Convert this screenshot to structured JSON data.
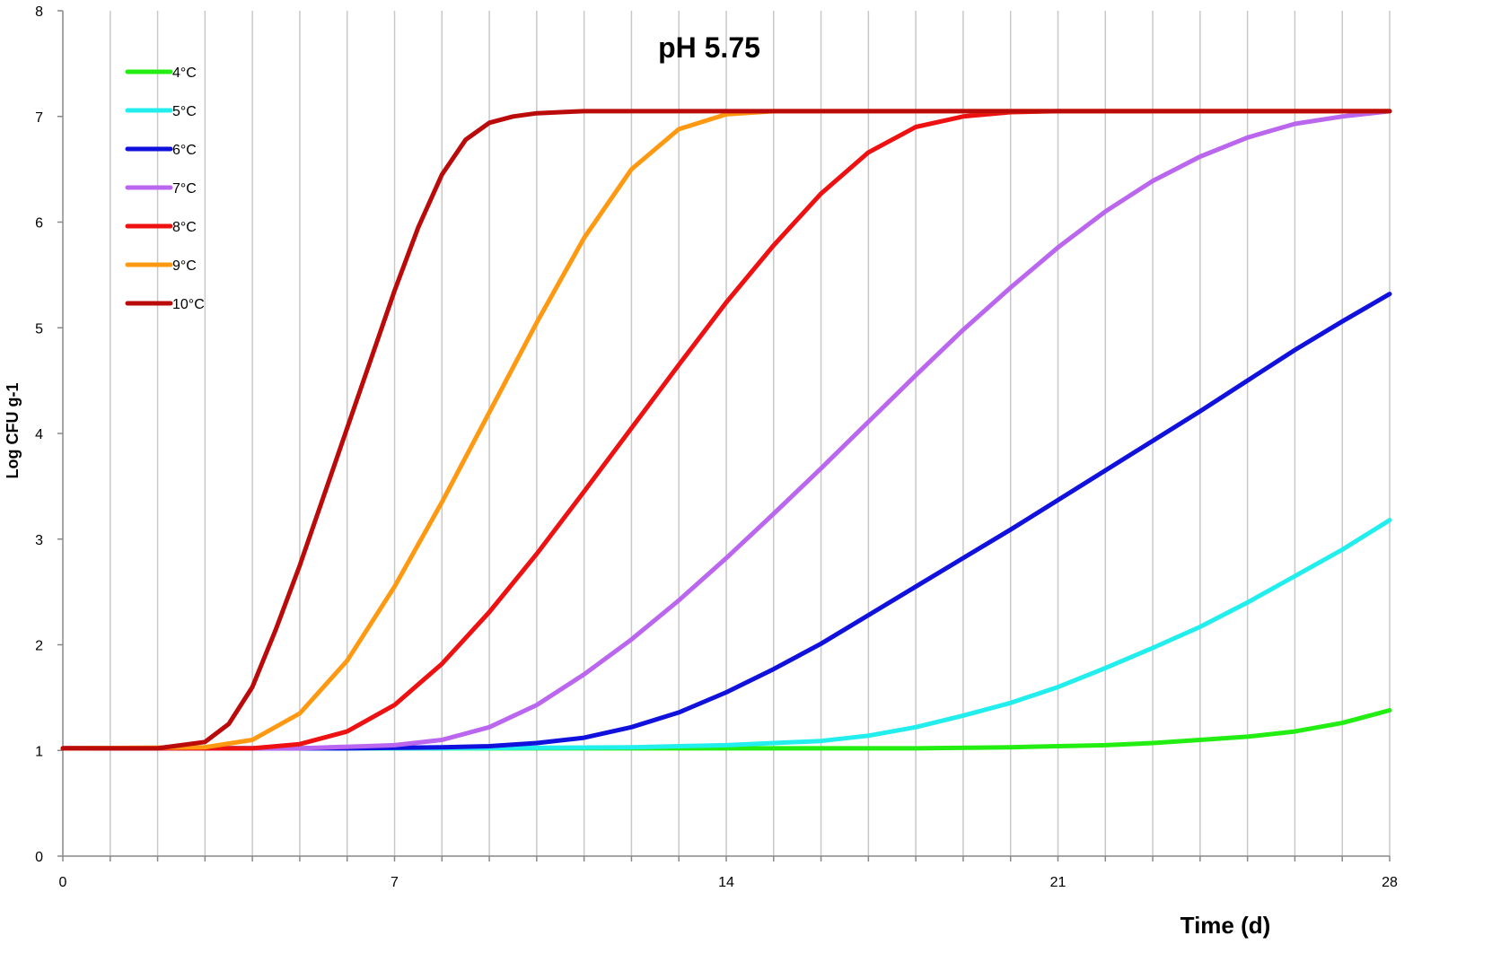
{
  "chart_data": {
    "type": "line",
    "title": "pH 5.75",
    "xlabel": "Time (d)",
    "ylabel": "Log CFU g-1",
    "xlim": [
      0,
      28
    ],
    "ylim": [
      0,
      8
    ],
    "x_ticks": [
      0,
      7,
      14,
      21,
      28
    ],
    "y_ticks": [
      0,
      1,
      2,
      3,
      4,
      5,
      6,
      7,
      8
    ],
    "grid": "vertical",
    "legend_position": "top-left",
    "series": [
      {
        "name": "4°C",
        "color": "#22ee11",
        "x": [
          0,
          5,
          10,
          14,
          16,
          18,
          20,
          21,
          22,
          23,
          24,
          25,
          26,
          27,
          28
        ],
        "values": [
          1.02,
          1.02,
          1.02,
          1.02,
          1.02,
          1.02,
          1.03,
          1.04,
          1.05,
          1.07,
          1.1,
          1.13,
          1.18,
          1.26,
          1.38
        ]
      },
      {
        "name": "5°C",
        "color": "#22eeee",
        "x": [
          0,
          8,
          12,
          14,
          16,
          17,
          18,
          19,
          20,
          21,
          22,
          23,
          24,
          25,
          26,
          27,
          28
        ],
        "values": [
          1.02,
          1.02,
          1.03,
          1.05,
          1.09,
          1.14,
          1.22,
          1.33,
          1.45,
          1.6,
          1.78,
          1.97,
          2.17,
          2.4,
          2.65,
          2.9,
          3.18
        ]
      },
      {
        "name": "6°C",
        "color": "#1111dd",
        "x": [
          0,
          6,
          8,
          9,
          10,
          11,
          12,
          13,
          14,
          15,
          16,
          17,
          18,
          19,
          20,
          21,
          22,
          23,
          24,
          25,
          26,
          27,
          28
        ],
        "values": [
          1.02,
          1.02,
          1.03,
          1.04,
          1.07,
          1.12,
          1.22,
          1.36,
          1.55,
          1.77,
          2.01,
          2.28,
          2.55,
          2.82,
          3.09,
          3.37,
          3.65,
          3.93,
          4.21,
          4.5,
          4.79,
          5.06,
          5.32
        ]
      },
      {
        "name": "7°C",
        "color": "#bb66ee",
        "x": [
          0,
          5,
          7,
          8,
          9,
          10,
          11,
          12,
          13,
          14,
          15,
          16,
          17,
          18,
          19,
          20,
          21,
          22,
          23,
          24,
          25,
          26,
          27,
          28
        ],
        "values": [
          1.02,
          1.02,
          1.05,
          1.1,
          1.22,
          1.43,
          1.72,
          2.05,
          2.42,
          2.82,
          3.24,
          3.67,
          4.11,
          4.55,
          4.98,
          5.38,
          5.76,
          6.1,
          6.39,
          6.62,
          6.8,
          6.93,
          7.0,
          7.05
        ]
      },
      {
        "name": "8°C",
        "color": "#ee1111",
        "x": [
          0,
          4,
          5,
          6,
          7,
          8,
          9,
          10,
          11,
          12,
          13,
          14,
          15,
          16,
          17,
          18,
          19,
          20,
          21,
          28
        ],
        "values": [
          1.02,
          1.02,
          1.06,
          1.18,
          1.43,
          1.82,
          2.31,
          2.86,
          3.45,
          4.05,
          4.65,
          5.24,
          5.78,
          6.27,
          6.66,
          6.9,
          7.0,
          7.04,
          7.05,
          7.05
        ]
      },
      {
        "name": "9°C",
        "color": "#ff9911",
        "x": [
          0,
          3,
          4,
          5,
          6,
          7,
          8,
          9,
          10,
          11,
          12,
          13,
          14,
          15,
          28
        ],
        "values": [
          1.02,
          1.03,
          1.1,
          1.35,
          1.85,
          2.55,
          3.35,
          4.2,
          5.05,
          5.85,
          6.5,
          6.88,
          7.02,
          7.05,
          7.05
        ]
      },
      {
        "name": "10°C",
        "color": "#bb0a0a",
        "x": [
          0,
          2,
          3,
          3.5,
          4,
          4.5,
          5,
          5.5,
          6,
          6.5,
          7,
          7.5,
          8,
          8.5,
          9,
          9.5,
          10,
          10.5,
          11,
          12,
          28
        ],
        "values": [
          1.02,
          1.02,
          1.08,
          1.25,
          1.6,
          2.15,
          2.75,
          3.4,
          4.05,
          4.7,
          5.35,
          5.95,
          6.45,
          6.78,
          6.94,
          7.0,
          7.03,
          7.04,
          7.05,
          7.05,
          7.05
        ]
      }
    ]
  }
}
